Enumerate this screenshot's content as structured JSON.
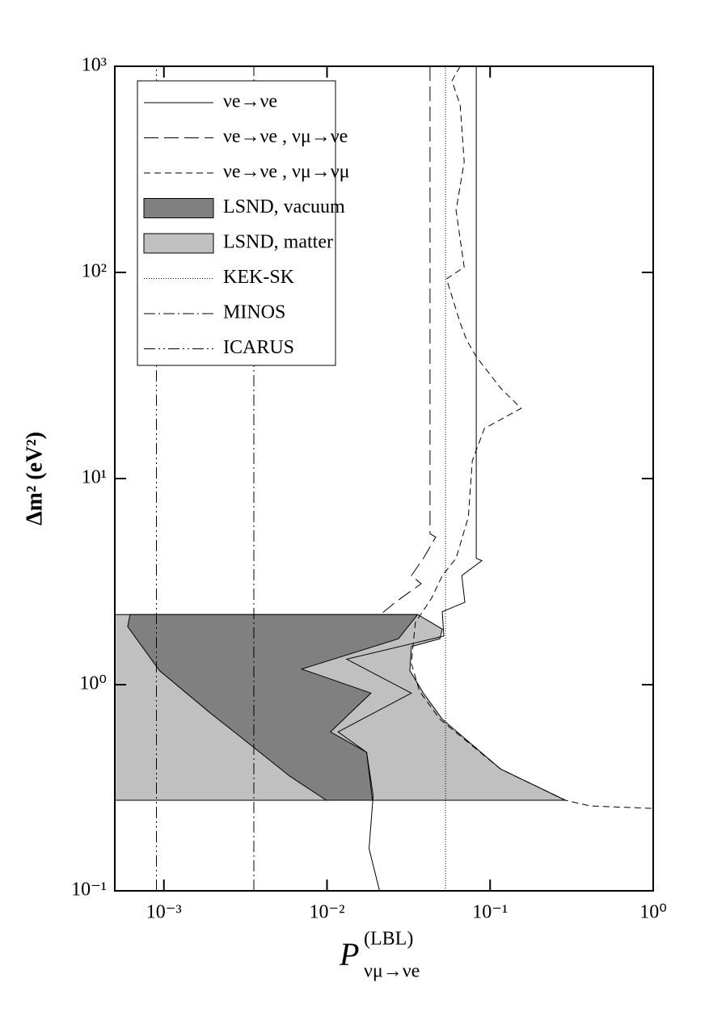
{
  "chart_data": {
    "type": "line",
    "xscale": "log",
    "yscale": "log",
    "xlabel": {
      "symbol": "P",
      "superscript": "(LBL)",
      "subscript": "νμ→νe"
    },
    "ylabel": "Δm² (eV²)",
    "xlim": [
      0.0005,
      1
    ],
    "ylim": [
      0.1,
      1000
    ],
    "xticks": [
      {
        "value": 0.001,
        "label": "10⁻³"
      },
      {
        "value": 0.01,
        "label": "10⁻²"
      },
      {
        "value": 0.1,
        "label": "10⁻¹"
      },
      {
        "value": 1,
        "label": "10⁰"
      }
    ],
    "yticks": [
      {
        "value": 0.1,
        "label": "10⁻¹"
      },
      {
        "value": 1,
        "label": "10⁰"
      },
      {
        "value": 10,
        "label": "10¹"
      },
      {
        "value": 100,
        "label": "10²"
      },
      {
        "value": 1000,
        "label": "10³"
      }
    ],
    "legend": "upper left",
    "series": [
      {
        "name": "νe→νe",
        "kind": "line",
        "dash": "solid",
        "color": "#000000",
        "x": [
          0.0822,
          0.0822,
          0.089,
          0.067,
          0.07,
          0.0509,
          0.052,
          0.0132,
          0.0329,
          0.0117,
          0.0175,
          0.0192,
          0.0181,
          0.021
        ],
        "values": [
          1000,
          4.1,
          4.0,
          3.38,
          2.51,
          2.26,
          1.72,
          1.33,
          0.91,
          0.59,
          0.47,
          0.29,
          0.16,
          0.1
        ]
      },
      {
        "name": "νe→νe , νμ→νe",
        "kind": "line",
        "dash": "long",
        "color": "#000000",
        "x": [
          0.0428,
          0.0428,
          0.0464,
          0.039,
          0.0329,
          0.0378,
          0.0262,
          0.0213
        ],
        "values": [
          1000,
          5.4,
          5.2,
          4.1,
          3.38,
          3.09,
          2.51,
          2.19
        ]
      },
      {
        "name": "νe→νe , νμ→νμ",
        "kind": "line",
        "dash": "short",
        "color": "#000000",
        "x": [
          0.0655,
          0.0583,
          0.0655,
          0.0694,
          0.0618,
          0.0694,
          0.054,
          0.0655,
          0.0718,
          0.0822,
          0.116,
          0.155,
          0.0923,
          0.0778,
          0.0735,
          0.0618,
          0.0509,
          0.0438,
          0.0348,
          0.034,
          0.0329,
          0.0369,
          0.0492,
          0.116,
          0.29,
          0.41,
          1
        ],
        "values": [
          1000,
          850,
          649,
          344,
          200,
          106,
          93,
          57,
          47,
          39,
          27.5,
          21.9,
          17.5,
          12.2,
          6.5,
          4.1,
          3.38,
          2.63,
          2.0,
          1.67,
          1.27,
          0.93,
          0.68,
          0.39,
          0.275,
          0.258,
          0.251
        ]
      },
      {
        "name": "LSND, vacuum",
        "kind": "area",
        "color": "#808080",
        "x": [
          0.00062,
          0.036,
          0.0274,
          0.007,
          0.0186,
          0.0105,
          0.0175,
          0.019,
          0.0099,
          0.0059,
          0.0033,
          0.00188,
          0.00094,
          0.0006
        ],
        "values": [
          2.19,
          2.19,
          1.67,
          1.19,
          0.91,
          0.59,
          0.47,
          0.275,
          0.275,
          0.36,
          0.52,
          0.74,
          1.17,
          1.91
        ]
      },
      {
        "name": "LSND, matter",
        "kind": "area",
        "color": "#c0c0c0",
        "x": [
          0.0005,
          0.036,
          0.0509,
          0.0492,
          0.0329,
          0.0322,
          0.039,
          0.0509,
          0.116,
          0.29,
          0.0005
        ],
        "values": [
          2.19,
          2.19,
          1.86,
          1.67,
          1.53,
          1.17,
          0.91,
          0.68,
          0.39,
          0.275,
          0.275
        ]
      },
      {
        "name": "KEK-SK",
        "kind": "line",
        "dash": "dotted",
        "color": "#000000",
        "x": [
          0.0533,
          0.0533
        ],
        "values": [
          0.1,
          1000
        ]
      },
      {
        "name": "MINOS",
        "kind": "line",
        "dash": "dashdot",
        "color": "#000000",
        "x": [
          0.00356,
          0.00356
        ],
        "values": [
          0.1,
          1000
        ]
      },
      {
        "name": "ICARUS",
        "kind": "line",
        "dash": "dashdotdot",
        "color": "#000000",
        "x": [
          0.0009,
          0.0009
        ],
        "values": [
          0.1,
          1000
        ]
      }
    ]
  }
}
